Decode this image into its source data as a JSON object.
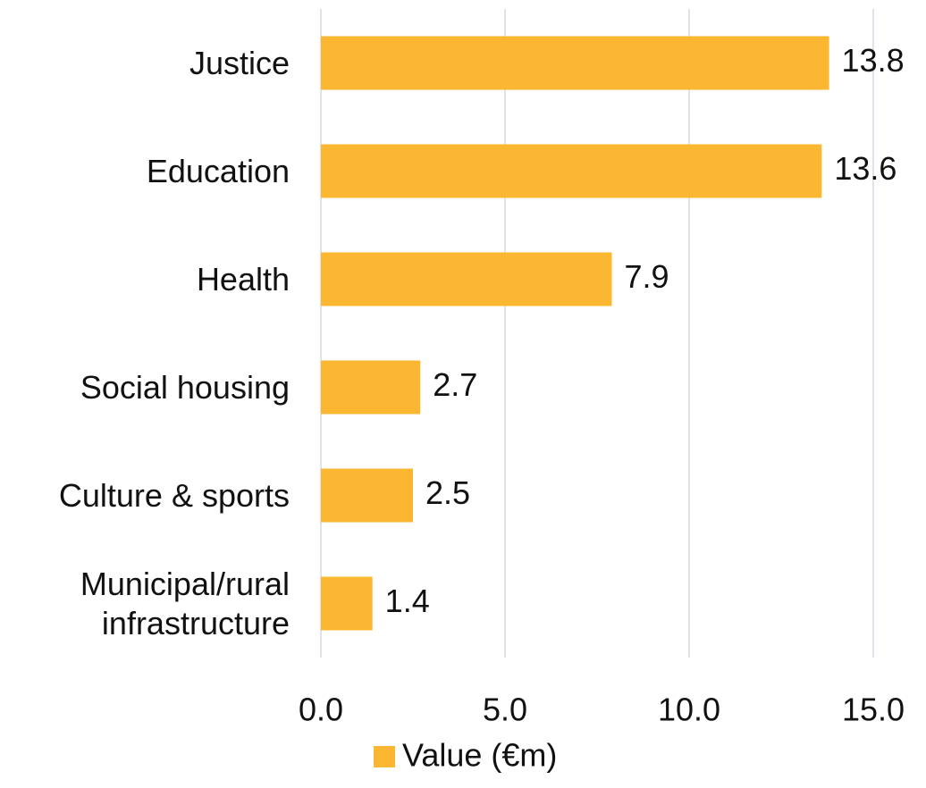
{
  "chart_data": {
    "type": "barh",
    "categories": [
      "Justice",
      "Education",
      "Health",
      "Social housing",
      "Culture & sports",
      "Municipal/rural infrastructure"
    ],
    "series": [
      {
        "name": "Value (€m)",
        "color": "#fbb632",
        "values": [
          13.8,
          13.6,
          7.9,
          2.7,
          2.5,
          1.4
        ]
      }
    ],
    "xlim": [
      0,
      15
    ],
    "xticks": [
      {
        "value": 0,
        "label": "0.0"
      },
      {
        "value": 5,
        "label": "5.0"
      },
      {
        "value": 10,
        "label": "10.0"
      },
      {
        "value": 15,
        "label": "15.0"
      }
    ],
    "grid": true,
    "legend": "bottom"
  }
}
